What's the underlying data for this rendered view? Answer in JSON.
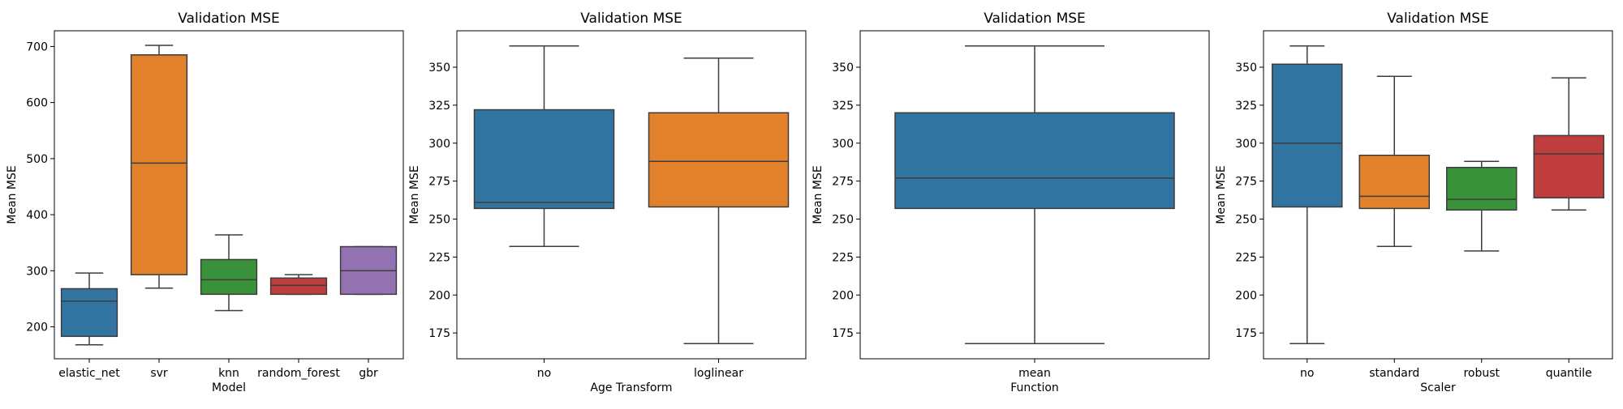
{
  "figure": {
    "charts": [
      {
        "title": "Validation MSE",
        "xlabel": "Model",
        "ylabel": "Mean MSE",
        "type": "box",
        "ylim": [
          143,
          728
        ],
        "yticks": [
          200,
          300,
          400,
          500,
          600,
          700
        ],
        "categories": [
          "elastic_net",
          "svr",
          "knn",
          "random_forest",
          "gbr"
        ],
        "boxes": [
          {
            "category": "elastic_net",
            "whisker_low": 168,
            "q1": 183,
            "median": 246,
            "q3": 268,
            "whisker_high": 296,
            "color": "#3274a1"
          },
          {
            "category": "svr",
            "whisker_low": 269,
            "q1": 293,
            "median": 492,
            "q3": 685,
            "whisker_high": 702,
            "color": "#e1812c"
          },
          {
            "category": "knn",
            "whisker_low": 229,
            "q1": 258,
            "median": 284,
            "q3": 320,
            "whisker_high": 364,
            "color": "#3a923a"
          },
          {
            "category": "random_forest",
            "whisker_low": 258,
            "q1": 258,
            "median": 274,
            "q3": 287,
            "whisker_high": 293,
            "color": "#c03d3e"
          },
          {
            "category": "gbr",
            "whisker_low": 258,
            "q1": 258,
            "median": 300,
            "q3": 343,
            "whisker_high": 343,
            "color": "#9372b2"
          }
        ]
      },
      {
        "title": "Validation MSE",
        "xlabel": "Age Transform",
        "ylabel": "Mean MSE",
        "type": "box",
        "ylim": [
          158,
          374
        ],
        "yticks": [
          175,
          200,
          225,
          250,
          275,
          300,
          325,
          350
        ],
        "categories": [
          "no",
          "loglinear"
        ],
        "boxes": [
          {
            "category": "no",
            "whisker_low": 232,
            "q1": 257,
            "median": 261,
            "q3": 322,
            "whisker_high": 364,
            "color": "#3274a1"
          },
          {
            "category": "loglinear",
            "whisker_low": 168,
            "q1": 258,
            "median": 288,
            "q3": 320,
            "whisker_high": 356,
            "color": "#e1812c"
          }
        ]
      },
      {
        "title": "Validation MSE",
        "xlabel": "Function",
        "ylabel": "Mean MSE",
        "type": "box",
        "ylim": [
          158,
          374
        ],
        "yticks": [
          175,
          200,
          225,
          250,
          275,
          300,
          325,
          350
        ],
        "categories": [
          "mean"
        ],
        "boxes": [
          {
            "category": "mean",
            "whisker_low": 168,
            "q1": 257,
            "median": 277,
            "q3": 320,
            "whisker_high": 364,
            "color": "#3274a1"
          }
        ]
      },
      {
        "title": "Validation MSE",
        "xlabel": "Scaler",
        "ylabel": "Mean MSE",
        "type": "box",
        "ylim": [
          158,
          374
        ],
        "yticks": [
          175,
          200,
          225,
          250,
          275,
          300,
          325,
          350
        ],
        "categories": [
          "no",
          "standard",
          "robust",
          "quantile"
        ],
        "boxes": [
          {
            "category": "no",
            "whisker_low": 168,
            "q1": 258,
            "median": 300,
            "q3": 352,
            "whisker_high": 364,
            "color": "#3274a1"
          },
          {
            "category": "standard",
            "whisker_low": 232,
            "q1": 257,
            "median": 265,
            "q3": 292,
            "whisker_high": 344,
            "color": "#e1812c"
          },
          {
            "category": "robust",
            "whisker_low": 229,
            "q1": 256,
            "median": 263,
            "q3": 284,
            "whisker_high": 288,
            "color": "#3a923a"
          },
          {
            "category": "quantile",
            "whisker_low": 256,
            "q1": 264,
            "median": 293,
            "q3": 305,
            "whisker_high": 343,
            "color": "#c03d3e"
          }
        ]
      }
    ]
  },
  "chart_data": [
    {
      "type": "box",
      "title": "Validation MSE",
      "xlabel": "Model",
      "ylabel": "Mean MSE",
      "categories": [
        "elastic_net",
        "svr",
        "knn",
        "random_forest",
        "gbr"
      ],
      "series": [
        {
          "name": "",
          "stats": [
            {
              "min": 168,
              "q1": 183,
              "median": 246,
              "q3": 268,
              "max": 296
            },
            {
              "min": 269,
              "q1": 293,
              "median": 492,
              "q3": 685,
              "max": 702
            },
            {
              "min": 229,
              "q1": 258,
              "median": 284,
              "q3": 320,
              "max": 364
            },
            {
              "min": 258,
              "q1": 258,
              "median": 274,
              "q3": 287,
              "max": 293
            },
            {
              "min": 258,
              "q1": 258,
              "median": 300,
              "q3": 343,
              "max": 343
            }
          ]
        }
      ],
      "ylim": [
        143,
        728
      ],
      "grid": false,
      "legend": "none"
    },
    {
      "type": "box",
      "title": "Validation MSE",
      "xlabel": "Age Transform",
      "ylabel": "Mean MSE",
      "categories": [
        "no",
        "loglinear"
      ],
      "series": [
        {
          "name": "",
          "stats": [
            {
              "min": 232,
              "q1": 257,
              "median": 261,
              "q3": 322,
              "max": 364
            },
            {
              "min": 168,
              "q1": 258,
              "median": 288,
              "q3": 320,
              "max": 356
            }
          ]
        }
      ],
      "ylim": [
        158,
        374
      ],
      "grid": false,
      "legend": "none"
    },
    {
      "type": "box",
      "title": "Validation MSE",
      "xlabel": "Function",
      "ylabel": "Mean MSE",
      "categories": [
        "mean"
      ],
      "series": [
        {
          "name": "",
          "stats": [
            {
              "min": 168,
              "q1": 257,
              "median": 277,
              "q3": 320,
              "max": 364
            }
          ]
        }
      ],
      "ylim": [
        158,
        374
      ],
      "grid": false,
      "legend": "none"
    },
    {
      "type": "box",
      "title": "Validation MSE",
      "xlabel": "Scaler",
      "ylabel": "Mean MSE",
      "categories": [
        "no",
        "standard",
        "robust",
        "quantile"
      ],
      "series": [
        {
          "name": "",
          "stats": [
            {
              "min": 168,
              "q1": 258,
              "median": 300,
              "q3": 352,
              "max": 364
            },
            {
              "min": 232,
              "q1": 257,
              "median": 265,
              "q3": 292,
              "max": 344
            },
            {
              "min": 229,
              "q1": 256,
              "median": 263,
              "q3": 284,
              "max": 288
            },
            {
              "min": 256,
              "q1": 264,
              "median": 293,
              "q3": 305,
              "max": 343
            }
          ]
        }
      ],
      "ylim": [
        158,
        374
      ],
      "grid": false,
      "legend": "none"
    }
  ]
}
